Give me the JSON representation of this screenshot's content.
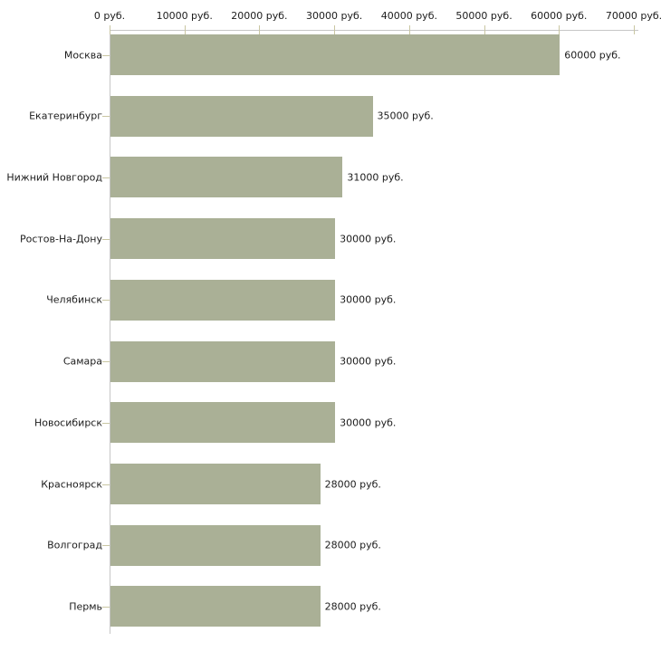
{
  "chart_data": {
    "type": "bar",
    "orientation": "horizontal",
    "title": "",
    "xlabel": "",
    "ylabel": "",
    "unit": "руб.",
    "xlim": [
      0,
      70000
    ],
    "grid": false,
    "legend": false,
    "categories": [
      "Москва",
      "Екатеринбург",
      "Нижний Новгород",
      "Ростов-На-Дону",
      "Челябинск",
      "Самара",
      "Новосибирск",
      "Красноярск",
      "Волгоград",
      "Пермь"
    ],
    "values": [
      60000,
      35000,
      31000,
      30000,
      30000,
      30000,
      30000,
      28000,
      28000,
      28000
    ],
    "value_labels": [
      "60000 руб.",
      "35000 руб.",
      "31000 руб.",
      "30000 руб.",
      "30000 руб.",
      "30000 руб.",
      "30000 руб.",
      "28000 руб.",
      "28000 руб.",
      "28000 руб."
    ],
    "x_ticks": [
      {
        "value": 0,
        "label": "0 руб."
      },
      {
        "value": 10000,
        "label": "10000 руб."
      },
      {
        "value": 20000,
        "label": "20000 руб."
      },
      {
        "value": 30000,
        "label": "30000 руб."
      },
      {
        "value": 40000,
        "label": "40000 руб."
      },
      {
        "value": 50000,
        "label": "50000 руб."
      },
      {
        "value": 60000,
        "label": "60000 руб."
      },
      {
        "value": 70000,
        "label": "70000 руб."
      }
    ],
    "colors": {
      "bar": "#aab096",
      "axis_line": "#c6c6c6",
      "tick_mark": "#c9c6a2",
      "text": "#1c1c1c",
      "background": "#ffffff"
    }
  }
}
